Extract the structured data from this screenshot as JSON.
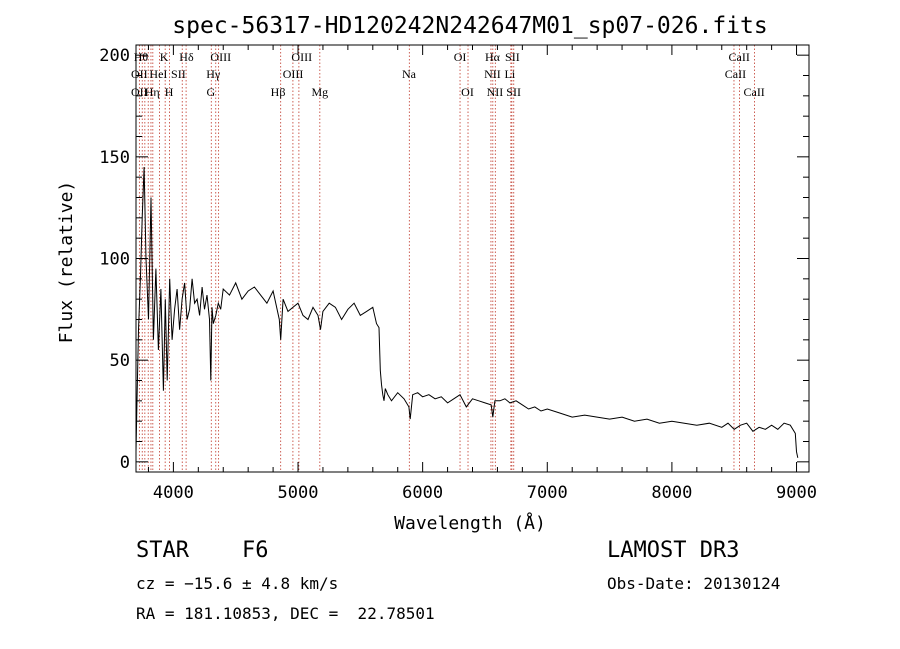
{
  "chart_data": {
    "type": "line",
    "title": "spec-56317-HD120242N242647M01_sp07-026.fits",
    "xlabel": "Wavelength (Å)",
    "ylabel": "Flux (relative)",
    "xlim": [
      3700,
      9100
    ],
    "ylim": [
      -5,
      205
    ],
    "xticks": [
      4000,
      5000,
      6000,
      7000,
      8000,
      9000
    ],
    "xtick_labels": [
      "4000",
      "5000",
      "6000",
      "7000",
      "8000",
      "9000"
    ],
    "yticks": [
      0,
      50,
      100,
      150,
      200
    ],
    "ytick_labels": [
      "0",
      "50",
      "100",
      "150",
      "200"
    ],
    "series": [
      {
        "name": "flux",
        "x": [
          3700,
          3710,
          3720,
          3735,
          3750,
          3765,
          3780,
          3800,
          3820,
          3840,
          3860,
          3880,
          3900,
          3920,
          3935,
          3950,
          3970,
          3990,
          4010,
          4030,
          4050,
          4070,
          4090,
          4110,
          4130,
          4150,
          4170,
          4190,
          4210,
          4230,
          4250,
          4270,
          4290,
          4300,
          4310,
          4320,
          4340,
          4360,
          4380,
          4400,
          4450,
          4500,
          4550,
          4600,
          4650,
          4700,
          4750,
          4800,
          4850,
          4861,
          4880,
          4920,
          4960,
          5000,
          5040,
          5080,
          5120,
          5160,
          5180,
          5200,
          5250,
          5300,
          5350,
          5400,
          5450,
          5500,
          5550,
          5600,
          5630,
          5650,
          5660,
          5670,
          5680,
          5690,
          5700,
          5720,
          5750,
          5800,
          5850,
          5890,
          5900,
          5920,
          5960,
          6000,
          6050,
          6100,
          6150,
          6200,
          6250,
          6300,
          6350,
          6400,
          6450,
          6500,
          6550,
          6563,
          6580,
          6620,
          6660,
          6700,
          6750,
          6800,
          6850,
          6900,
          6950,
          7000,
          7100,
          7200,
          7300,
          7400,
          7500,
          7600,
          7700,
          7800,
          7900,
          8000,
          8100,
          8200,
          8300,
          8400,
          8450,
          8500,
          8550,
          8600,
          8650,
          8700,
          8750,
          8800,
          8850,
          8900,
          8950,
          8990,
          9000,
          9010
        ],
        "values": [
          5,
          35,
          65,
          90,
          120,
          145,
          100,
          70,
          130,
          60,
          95,
          55,
          85,
          35,
          80,
          40,
          90,
          60,
          75,
          85,
          65,
          80,
          88,
          70,
          75,
          90,
          78,
          80,
          72,
          86,
          75,
          82,
          70,
          40,
          76,
          68,
          72,
          78,
          75,
          85,
          82,
          88,
          80,
          84,
          86,
          82,
          78,
          84,
          70,
          60,
          80,
          74,
          76,
          78,
          72,
          70,
          76,
          72,
          65,
          74,
          78,
          76,
          70,
          75,
          78,
          72,
          74,
          76,
          68,
          66,
          45,
          38,
          33,
          30,
          36,
          33,
          30,
          34,
          31,
          27,
          21,
          33,
          34,
          32,
          33,
          31,
          32,
          29,
          31,
          33,
          27,
          31,
          30,
          29,
          28,
          22,
          30,
          30,
          31,
          29,
          30,
          28,
          26,
          27,
          25,
          26,
          24,
          22,
          23,
          22,
          21,
          22,
          20,
          21,
          19,
          20,
          19,
          18,
          19,
          17,
          19,
          16,
          18,
          19,
          15,
          17,
          16,
          18,
          16,
          19,
          18,
          14,
          5,
          2
        ]
      }
    ],
    "lines": [
      {
        "x": 3727,
        "labels": [
          "OII",
          "OII"
        ]
      },
      {
        "x": 3750,
        "labels": [
          "Hθ"
        ]
      },
      {
        "x": 3771,
        "labels": [
          "Hθ",
          "Hη"
        ]
      },
      {
        "x": 3798,
        "labels": [
          "Hη"
        ]
      },
      {
        "x": 3820,
        "labels": [
          "HeI"
        ]
      },
      {
        "x": 3835,
        "labels": [
          "Hη"
        ]
      },
      {
        "x": 3889,
        "labels": [
          "HeI"
        ]
      },
      {
        "x": 3934,
        "labels": [
          "K"
        ]
      },
      {
        "x": 3969,
        "labels": [
          "H"
        ]
      },
      {
        "x": 4071,
        "labels": [
          "SII"
        ]
      },
      {
        "x": 4102,
        "labels": [
          "Hδ"
        ]
      },
      {
        "x": 4304,
        "labels": [
          "G"
        ]
      },
      {
        "x": 4340,
        "labels": [
          "Hγ"
        ]
      },
      {
        "x": 4363,
        "labels": [
          "OIII"
        ]
      },
      {
        "x": 4861,
        "labels": [
          "Hβ"
        ]
      },
      {
        "x": 4959,
        "labels": [
          "OIII",
          "OIII"
        ]
      },
      {
        "x": 5007,
        "labels": [
          "OIII"
        ]
      },
      {
        "x": 5175,
        "labels": [
          "Mg"
        ]
      },
      {
        "x": 5893,
        "labels": [
          "Na"
        ]
      },
      {
        "x": 6300,
        "labels": [
          "OI"
        ]
      },
      {
        "x": 6364,
        "labels": [
          "OI"
        ]
      },
      {
        "x": 6548,
        "labels": [
          "NII"
        ]
      },
      {
        "x": 6563,
        "labels": [
          "Hα",
          "NII"
        ]
      },
      {
        "x": 6583,
        "labels": [
          "NII"
        ]
      },
      {
        "x": 6708,
        "labels": [
          "Li"
        ]
      },
      {
        "x": 6716,
        "labels": [
          "SII",
          "SII"
        ]
      },
      {
        "x": 6731,
        "labels": [
          "SII"
        ]
      },
      {
        "x": 8498,
        "labels": [
          "CaII"
        ]
      },
      {
        "x": 8542,
        "labels": [
          "CaII"
        ]
      },
      {
        "x": 8662,
        "labels": [
          "CaII"
        ]
      }
    ],
    "line_labels": [
      {
        "text": "Hθ",
        "row": 0,
        "x": 3740
      },
      {
        "text": "K",
        "row": 0,
        "x": 3925
      },
      {
        "text": "Hδ",
        "row": 0,
        "x": 4105
      },
      {
        "text": "OIII",
        "row": 0,
        "x": 4380
      },
      {
        "text": "OIII",
        "row": 0,
        "x": 5030
      },
      {
        "text": "OI",
        "row": 0,
        "x": 6300
      },
      {
        "text": "Hα",
        "row": 0,
        "x": 6560
      },
      {
        "text": "SII",
        "row": 0,
        "x": 6720
      },
      {
        "text": "CaII",
        "row": 0,
        "x": 8540
      },
      {
        "text": "OII",
        "row": 1,
        "x": 3727
      },
      {
        "text": "HeI",
        "row": 1,
        "x": 3880
      },
      {
        "text": "SII",
        "row": 1,
        "x": 4040
      },
      {
        "text": "Hγ",
        "row": 1,
        "x": 4320
      },
      {
        "text": "OIII",
        "row": 1,
        "x": 4960
      },
      {
        "text": "Na",
        "row": 1,
        "x": 5890
      },
      {
        "text": "NII",
        "row": 1,
        "x": 6560
      },
      {
        "text": "Li",
        "row": 1,
        "x": 6700
      },
      {
        "text": "CaII",
        "row": 1,
        "x": 8510
      },
      {
        "text": "OII",
        "row": 2,
        "x": 3727
      },
      {
        "text": "Hη",
        "row": 2,
        "x": 3830
      },
      {
        "text": "H",
        "row": 2,
        "x": 3965
      },
      {
        "text": "G",
        "row": 2,
        "x": 4300
      },
      {
        "text": "Hβ",
        "row": 2,
        "x": 4840
      },
      {
        "text": "Mg",
        "row": 2,
        "x": 5175
      },
      {
        "text": "OI",
        "row": 2,
        "x": 6360
      },
      {
        "text": "NII",
        "row": 2,
        "x": 6580
      },
      {
        "text": "SII",
        "row": 2,
        "x": 6730
      },
      {
        "text": "CaII",
        "row": 2,
        "x": 8660
      }
    ]
  },
  "info": {
    "object_class": "STAR",
    "subclass": "F6",
    "survey": "LAMOST DR3",
    "redshift": "cz = −15.6 ± 4.8 km/s",
    "obs_date": "Obs-Date: 20130124",
    "coords": "RA = 181.10853, DEC =  22.78501"
  },
  "colors": {
    "axis": "#000000",
    "spectrum": "#000000",
    "line_markers": "#c0392b"
  }
}
